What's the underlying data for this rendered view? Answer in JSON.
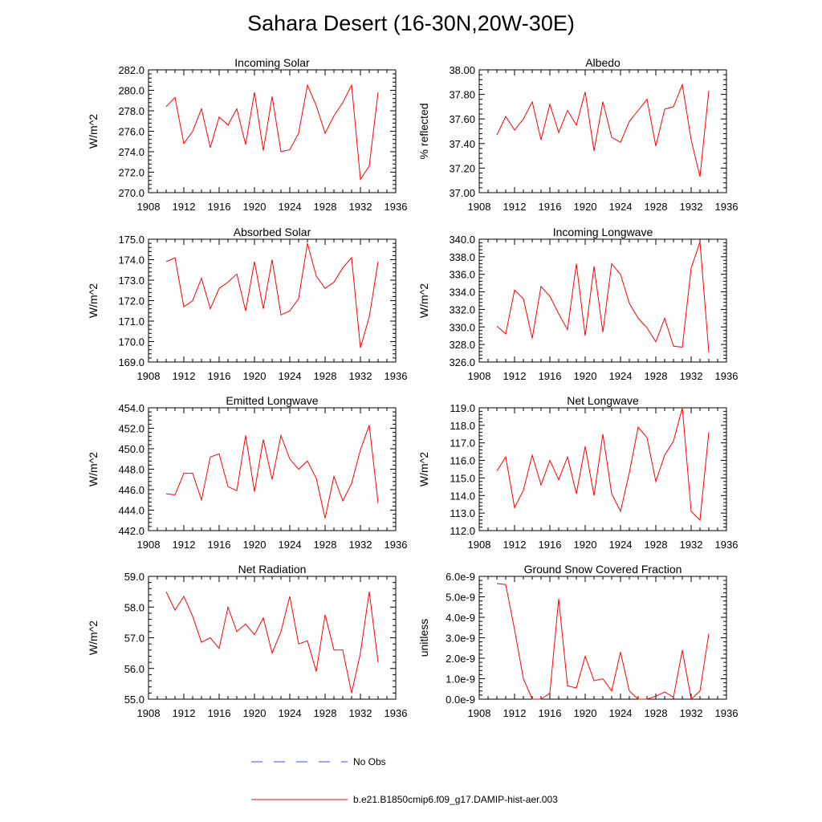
{
  "title": "Sahara Desert (16-30N,20W-30E)",
  "legend": [
    {
      "label": "No Obs",
      "color": "#4a4aff",
      "style": "dashed"
    },
    {
      "label": "b.e21.B1850cmip6.f09_g17.DAMIP-hist-aer.003",
      "color": "#ff0000",
      "style": "solid"
    }
  ],
  "chart_data": [
    {
      "type": "line",
      "title": "Incoming Solar",
      "xlabel": "",
      "ylabel": "W/m^2",
      "xlim": [
        1908,
        1936
      ],
      "ylim": [
        270,
        282
      ],
      "xticks": [
        "1908",
        "1912",
        "1916",
        "1920",
        "1924",
        "1928",
        "1932",
        "1936"
      ],
      "yticks": [
        "270.0",
        "272.0",
        "274.0",
        "276.0",
        "278.0",
        "280.0",
        "282.0"
      ],
      "x": [
        1910,
        1911,
        1912,
        1913,
        1914,
        1915,
        1916,
        1917,
        1918,
        1919,
        1920,
        1921,
        1922,
        1923,
        1924,
        1925,
        1926,
        1927,
        1928,
        1929,
        1930,
        1931,
        1932,
        1933,
        1934
      ],
      "series": [
        {
          "color": "#ff0000",
          "values": [
            278.4,
            279.3,
            274.8,
            276.0,
            278.2,
            274.4,
            277.4,
            276.6,
            278.2,
            274.7,
            279.8,
            274.1,
            279.4,
            274.0,
            274.2,
            275.8,
            280.5,
            278.5,
            275.8,
            277.5,
            278.8,
            280.5,
            271.3,
            272.6,
            279.8
          ]
        }
      ]
    },
    {
      "type": "line",
      "title": "Albedo",
      "xlabel": "",
      "ylabel": "% reflected",
      "xlim": [
        1908,
        1936
      ],
      "ylim": [
        37.0,
        38.0
      ],
      "xticks": [
        "1908",
        "1912",
        "1916",
        "1920",
        "1924",
        "1928",
        "1932",
        "1936"
      ],
      "yticks": [
        "37.00",
        "37.20",
        "37.40",
        "37.60",
        "37.80",
        "38.00"
      ],
      "x": [
        1910,
        1911,
        1912,
        1913,
        1914,
        1915,
        1916,
        1917,
        1918,
        1919,
        1920,
        1921,
        1922,
        1923,
        1924,
        1925,
        1926,
        1927,
        1928,
        1929,
        1930,
        1931,
        1932,
        1933,
        1934
      ],
      "series": [
        {
          "color": "#ff0000",
          "values": [
            37.47,
            37.62,
            37.51,
            37.6,
            37.74,
            37.43,
            37.72,
            37.49,
            37.67,
            37.55,
            37.82,
            37.34,
            37.74,
            37.45,
            37.41,
            37.58,
            37.67,
            37.76,
            37.38,
            37.68,
            37.7,
            37.88,
            37.43,
            37.13,
            37.83
          ]
        }
      ]
    },
    {
      "type": "line",
      "title": "Absorbed Solar",
      "xlabel": "",
      "ylabel": "W/m^2",
      "xlim": [
        1908,
        1936
      ],
      "ylim": [
        169,
        175
      ],
      "xticks": [
        "1908",
        "1912",
        "1916",
        "1920",
        "1924",
        "1928",
        "1932",
        "1936"
      ],
      "yticks": [
        "169.0",
        "170.0",
        "171.0",
        "172.0",
        "173.0",
        "174.0",
        "175.0"
      ],
      "x": [
        1910,
        1911,
        1912,
        1913,
        1914,
        1915,
        1916,
        1917,
        1918,
        1919,
        1920,
        1921,
        1922,
        1923,
        1924,
        1925,
        1926,
        1927,
        1928,
        1929,
        1930,
        1931,
        1932,
        1933,
        1934
      ],
      "series": [
        {
          "color": "#ff0000",
          "values": [
            173.9,
            174.1,
            171.7,
            172.0,
            173.1,
            171.6,
            172.6,
            172.9,
            173.3,
            171.5,
            173.9,
            171.6,
            174.0,
            171.3,
            171.5,
            172.1,
            174.8,
            173.2,
            172.6,
            172.9,
            173.6,
            174.1,
            169.7,
            171.2,
            173.9
          ]
        }
      ]
    },
    {
      "type": "line",
      "title": "Incoming Longwave",
      "xlabel": "",
      "ylabel": "W/m^2",
      "xlim": [
        1908,
        1936
      ],
      "ylim": [
        326,
        340
      ],
      "xticks": [
        "1908",
        "1912",
        "1916",
        "1920",
        "1924",
        "1928",
        "1932",
        "1936"
      ],
      "yticks": [
        "326.0",
        "328.0",
        "330.0",
        "332.0",
        "334.0",
        "336.0",
        "338.0",
        "340.0"
      ],
      "x": [
        1910,
        1911,
        1912,
        1913,
        1914,
        1915,
        1916,
        1917,
        1918,
        1919,
        1920,
        1921,
        1922,
        1923,
        1924,
        1925,
        1926,
        1927,
        1928,
        1929,
        1930,
        1931,
        1932,
        1933,
        1934
      ],
      "series": [
        {
          "color": "#ff0000",
          "values": [
            330.1,
            329.2,
            334.2,
            333.2,
            328.7,
            334.6,
            333.5,
            331.5,
            329.7,
            337.2,
            329.0,
            336.9,
            329.4,
            337.2,
            336.0,
            332.7,
            331.0,
            329.9,
            328.3,
            331.0,
            327.8,
            327.7,
            336.7,
            339.7,
            327.1
          ]
        }
      ]
    },
    {
      "type": "line",
      "title": "Emitted Longwave",
      "xlabel": "",
      "ylabel": "W/m^2",
      "xlim": [
        1908,
        1936
      ],
      "ylim": [
        442,
        454
      ],
      "xticks": [
        "1908",
        "1912",
        "1916",
        "1920",
        "1924",
        "1928",
        "1932",
        "1936"
      ],
      "yticks": [
        "442.0",
        "444.0",
        "446.0",
        "448.0",
        "450.0",
        "452.0",
        "454.0"
      ],
      "x": [
        1910,
        1911,
        1912,
        1913,
        1914,
        1915,
        1916,
        1917,
        1918,
        1919,
        1920,
        1921,
        1922,
        1923,
        1924,
        1925,
        1926,
        1927,
        1928,
        1929,
        1930,
        1931,
        1932,
        1933,
        1934
      ],
      "series": [
        {
          "color": "#ff0000",
          "values": [
            445.6,
            445.5,
            447.6,
            447.6,
            445.0,
            449.2,
            449.5,
            446.3,
            445.9,
            451.3,
            445.8,
            450.9,
            447.0,
            451.3,
            449.0,
            448.0,
            448.8,
            447.1,
            443.2,
            447.3,
            444.9,
            446.6,
            449.9,
            452.3,
            444.7
          ]
        }
      ]
    },
    {
      "type": "line",
      "title": "Net Longwave",
      "xlabel": "",
      "ylabel": "W/m^2",
      "xlim": [
        1908,
        1936
      ],
      "ylim": [
        112,
        119
      ],
      "xticks": [
        "1908",
        "1912",
        "1916",
        "1920",
        "1924",
        "1928",
        "1932",
        "1936"
      ],
      "yticks": [
        "112.0",
        "113.0",
        "114.0",
        "115.0",
        "116.0",
        "117.0",
        "118.0",
        "119.0"
      ],
      "x": [
        1910,
        1911,
        1912,
        1913,
        1914,
        1915,
        1916,
        1917,
        1918,
        1919,
        1920,
        1921,
        1922,
        1923,
        1924,
        1925,
        1926,
        1927,
        1928,
        1929,
        1930,
        1931,
        1932,
        1933,
        1934
      ],
      "series": [
        {
          "color": "#ff0000",
          "values": [
            115.4,
            116.2,
            113.3,
            114.3,
            116.3,
            114.6,
            116.0,
            114.9,
            116.2,
            114.1,
            116.8,
            114.0,
            117.5,
            114.1,
            113.1,
            115.3,
            117.9,
            117.3,
            114.8,
            116.3,
            117.1,
            119.0,
            113.1,
            112.6,
            117.6
          ]
        }
      ]
    },
    {
      "type": "line",
      "title": "Net Radiation",
      "xlabel": "",
      "ylabel": "W/m^2",
      "xlim": [
        1908,
        1936
      ],
      "ylim": [
        55,
        59
      ],
      "xticks": [
        "1908",
        "1912",
        "1916",
        "1920",
        "1924",
        "1928",
        "1932",
        "1936"
      ],
      "yticks": [
        "55.0",
        "56.0",
        "57.0",
        "58.0",
        "59.0"
      ],
      "x": [
        1910,
        1911,
        1912,
        1913,
        1914,
        1915,
        1916,
        1917,
        1918,
        1919,
        1920,
        1921,
        1922,
        1923,
        1924,
        1925,
        1926,
        1927,
        1928,
        1929,
        1930,
        1931,
        1932,
        1933,
        1934
      ],
      "series": [
        {
          "color": "#ff0000",
          "values": [
            58.5,
            57.9,
            58.35,
            57.7,
            56.85,
            57.0,
            56.65,
            58.0,
            57.2,
            57.45,
            57.1,
            57.65,
            56.5,
            57.2,
            58.35,
            56.8,
            56.9,
            55.9,
            57.75,
            56.6,
            56.6,
            55.2,
            56.5,
            58.5,
            56.2
          ]
        }
      ]
    },
    {
      "type": "line",
      "title": "Ground Snow Covered Fraction",
      "xlabel": "",
      "ylabel": "unitless",
      "xlim": [
        1908,
        1936
      ],
      "ylim": [
        0,
        6e-09
      ],
      "xticks": [
        "1908",
        "1912",
        "1916",
        "1920",
        "1924",
        "1928",
        "1932",
        "1936"
      ],
      "yticks": [
        "0.0e-9",
        "1.0e-9",
        "2.0e-9",
        "3.0e-9",
        "4.0e-9",
        "5.0e-9",
        "6.0e-9"
      ],
      "x": [
        1910,
        1911,
        1912,
        1913,
        1914,
        1915,
        1916,
        1917,
        1918,
        1919,
        1920,
        1921,
        1922,
        1923,
        1924,
        1925,
        1926,
        1927,
        1928,
        1929,
        1930,
        1931,
        1932,
        1933,
        1934
      ],
      "series": [
        {
          "color": "#ff0000",
          "values": [
            5.65e-09,
            5.6e-09,
            3.4e-09,
            1e-09,
            0.0,
            0.0,
            3e-10,
            4.9e-09,
            6.5e-10,
            5.5e-10,
            2.1e-09,
            9e-10,
            1e-09,
            4e-10,
            2.3e-09,
            4e-10,
            0.0,
            0.0,
            1.5e-10,
            3.5e-10,
            1e-10,
            2.4e-09,
            0.0,
            4e-10,
            3.2e-09
          ]
        }
      ]
    }
  ]
}
